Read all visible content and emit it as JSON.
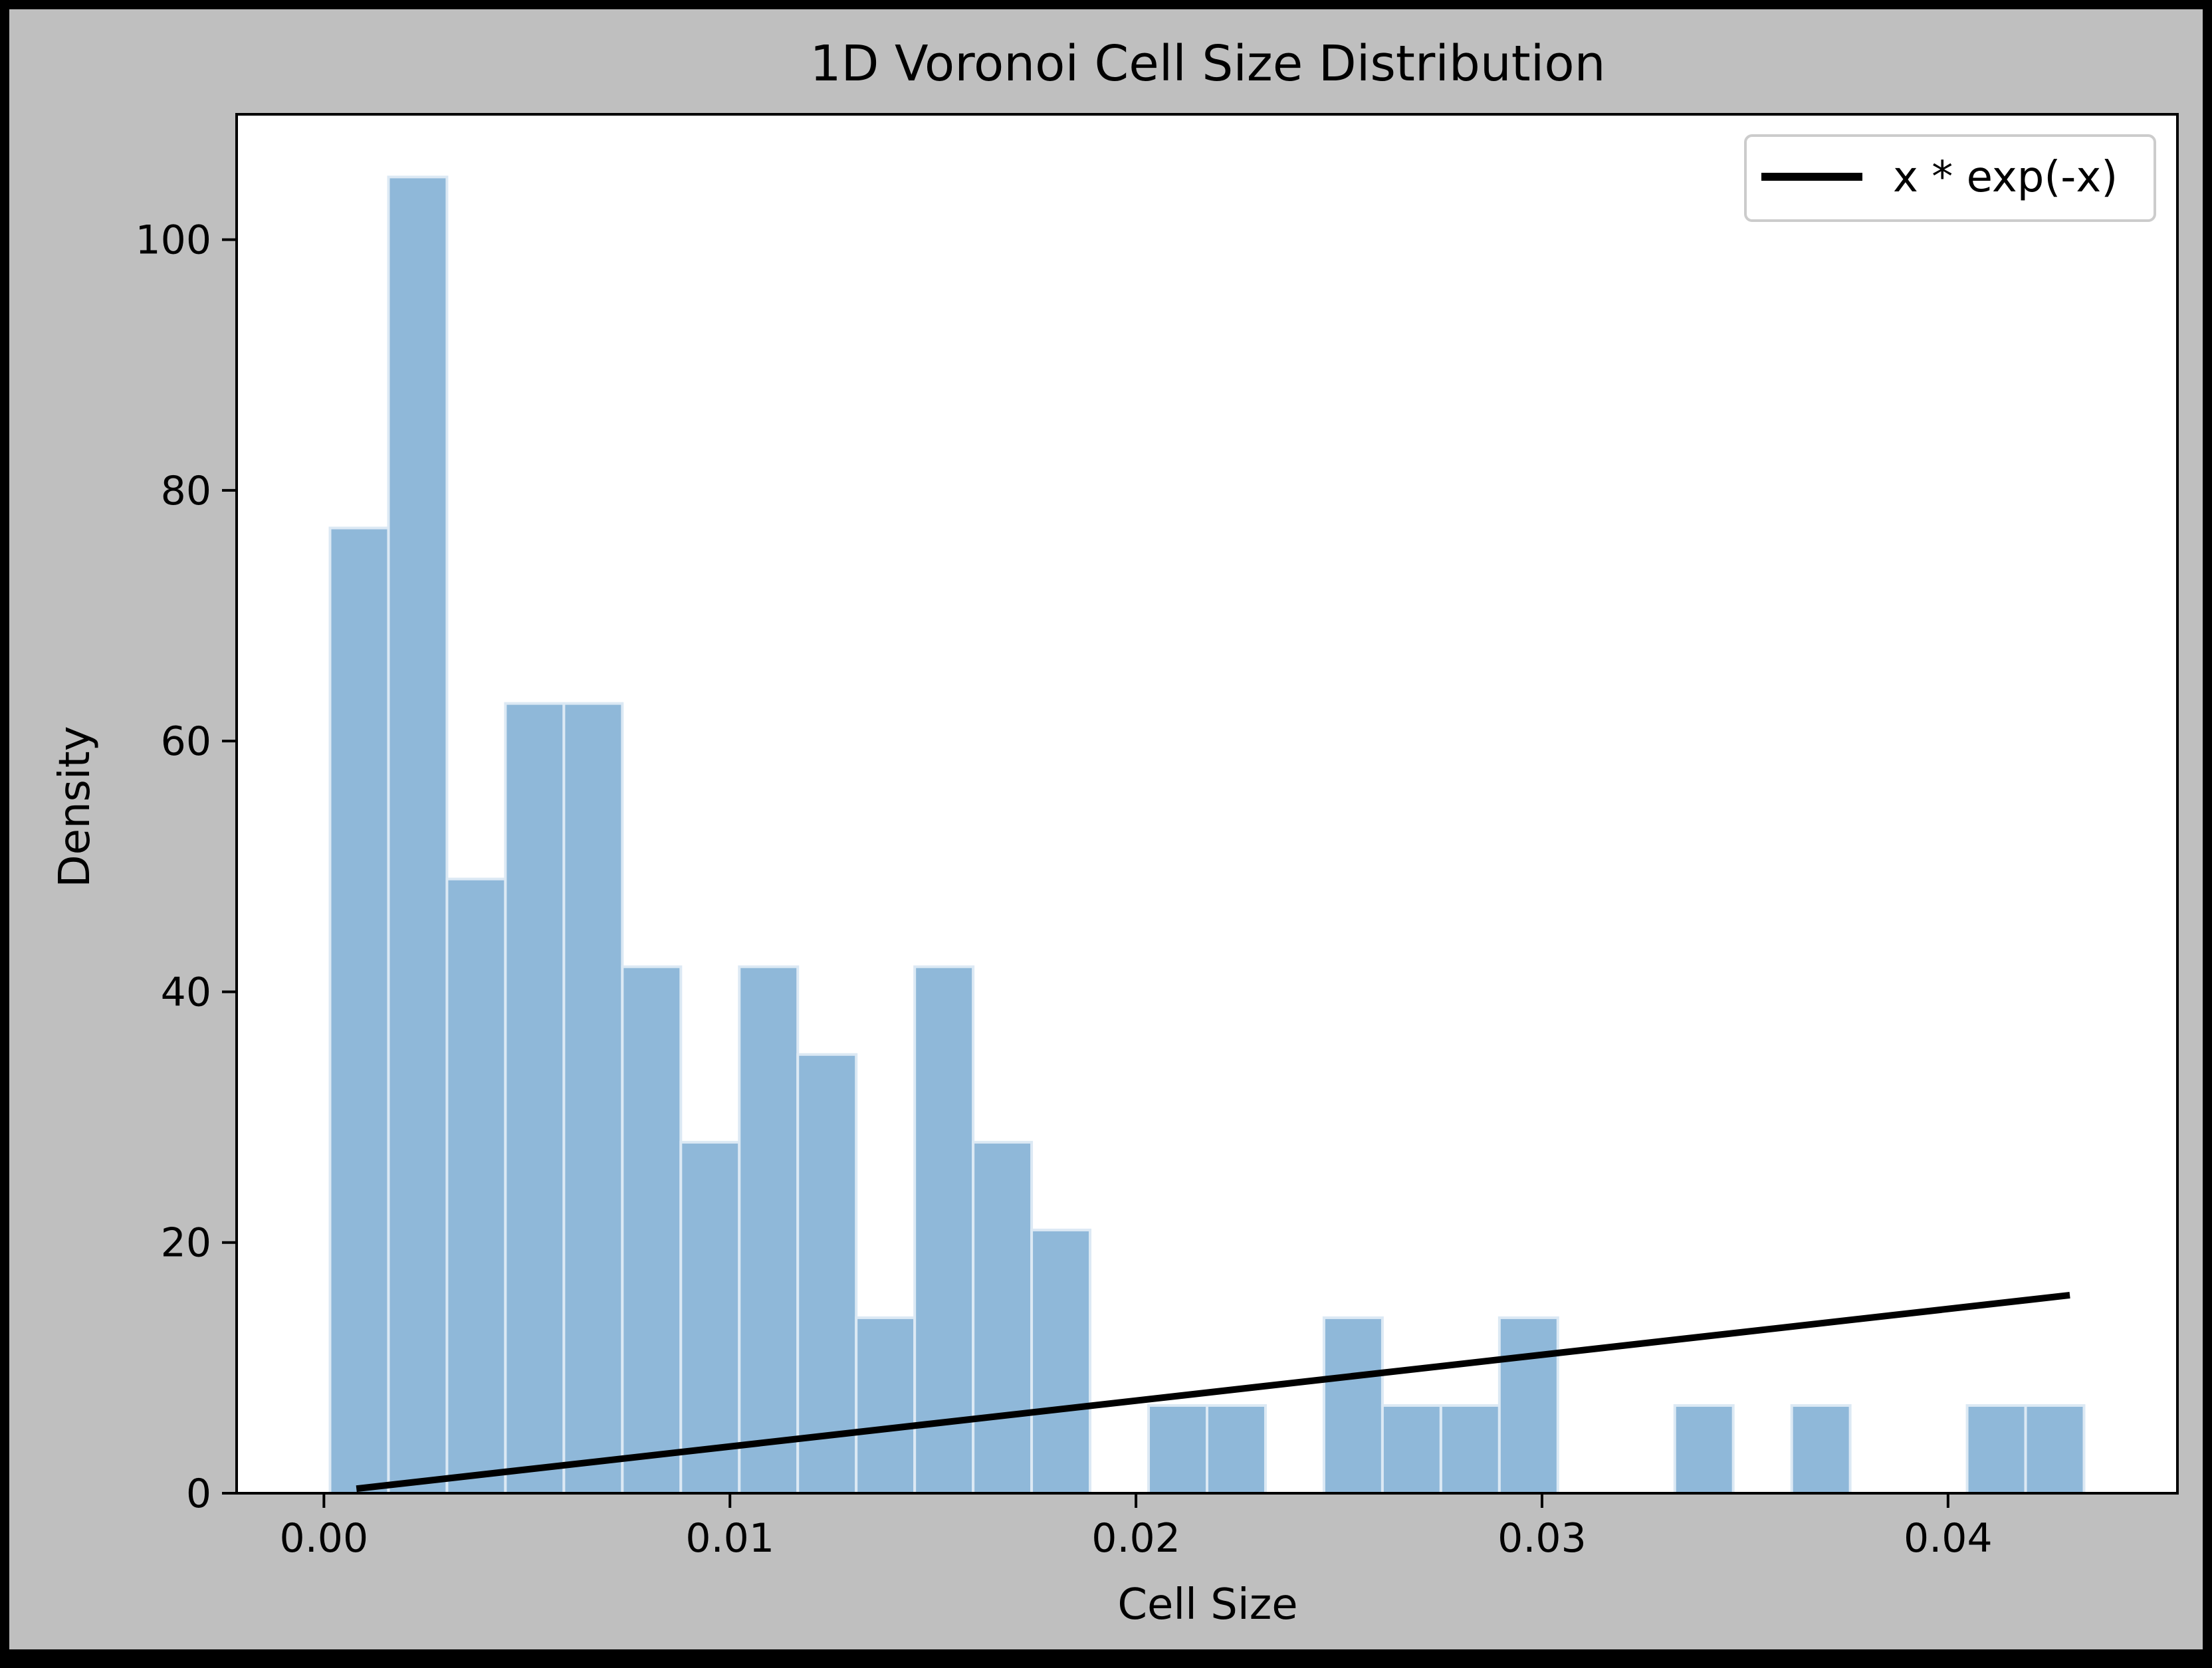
{
  "chart_data": {
    "type": "bar",
    "title": "1D Voronoi Cell Size Distribution",
    "xlabel": "Cell Size",
    "ylabel": "Density",
    "xlim": [
      -0.00215,
      0.04565
    ],
    "ylim": [
      0,
      110
    ],
    "xticks": [
      0.0,
      0.01,
      0.02,
      0.03,
      0.04
    ],
    "xtick_labels": [
      "0.00",
      "0.01",
      "0.02",
      "0.03",
      "0.04"
    ],
    "yticks": [
      0,
      20,
      40,
      60,
      80,
      100
    ],
    "ytick_labels": [
      "0",
      "20",
      "40",
      "60",
      "80",
      "100"
    ],
    "bar_color": "#8fb8d9",
    "bar_edge_color": "#dce9f4",
    "line_color": "#000000",
    "grid": false,
    "legend_position": "top-right",
    "histogram": {
      "bin_start": 0.00015,
      "bin_width": 0.00144,
      "density": [
        77,
        105,
        49,
        63,
        63,
        42,
        28,
        42,
        35,
        14,
        42,
        28,
        21,
        0,
        7,
        7,
        0,
        14,
        7,
        7,
        14,
        0,
        0,
        7,
        0,
        7,
        0,
        0,
        7,
        7
      ]
    },
    "series": [
      {
        "name": "x * exp(-x)",
        "type": "line",
        "x": [
          0.0008,
          0.043
        ],
        "y": [
          0.36,
          15.8
        ]
      }
    ]
  }
}
